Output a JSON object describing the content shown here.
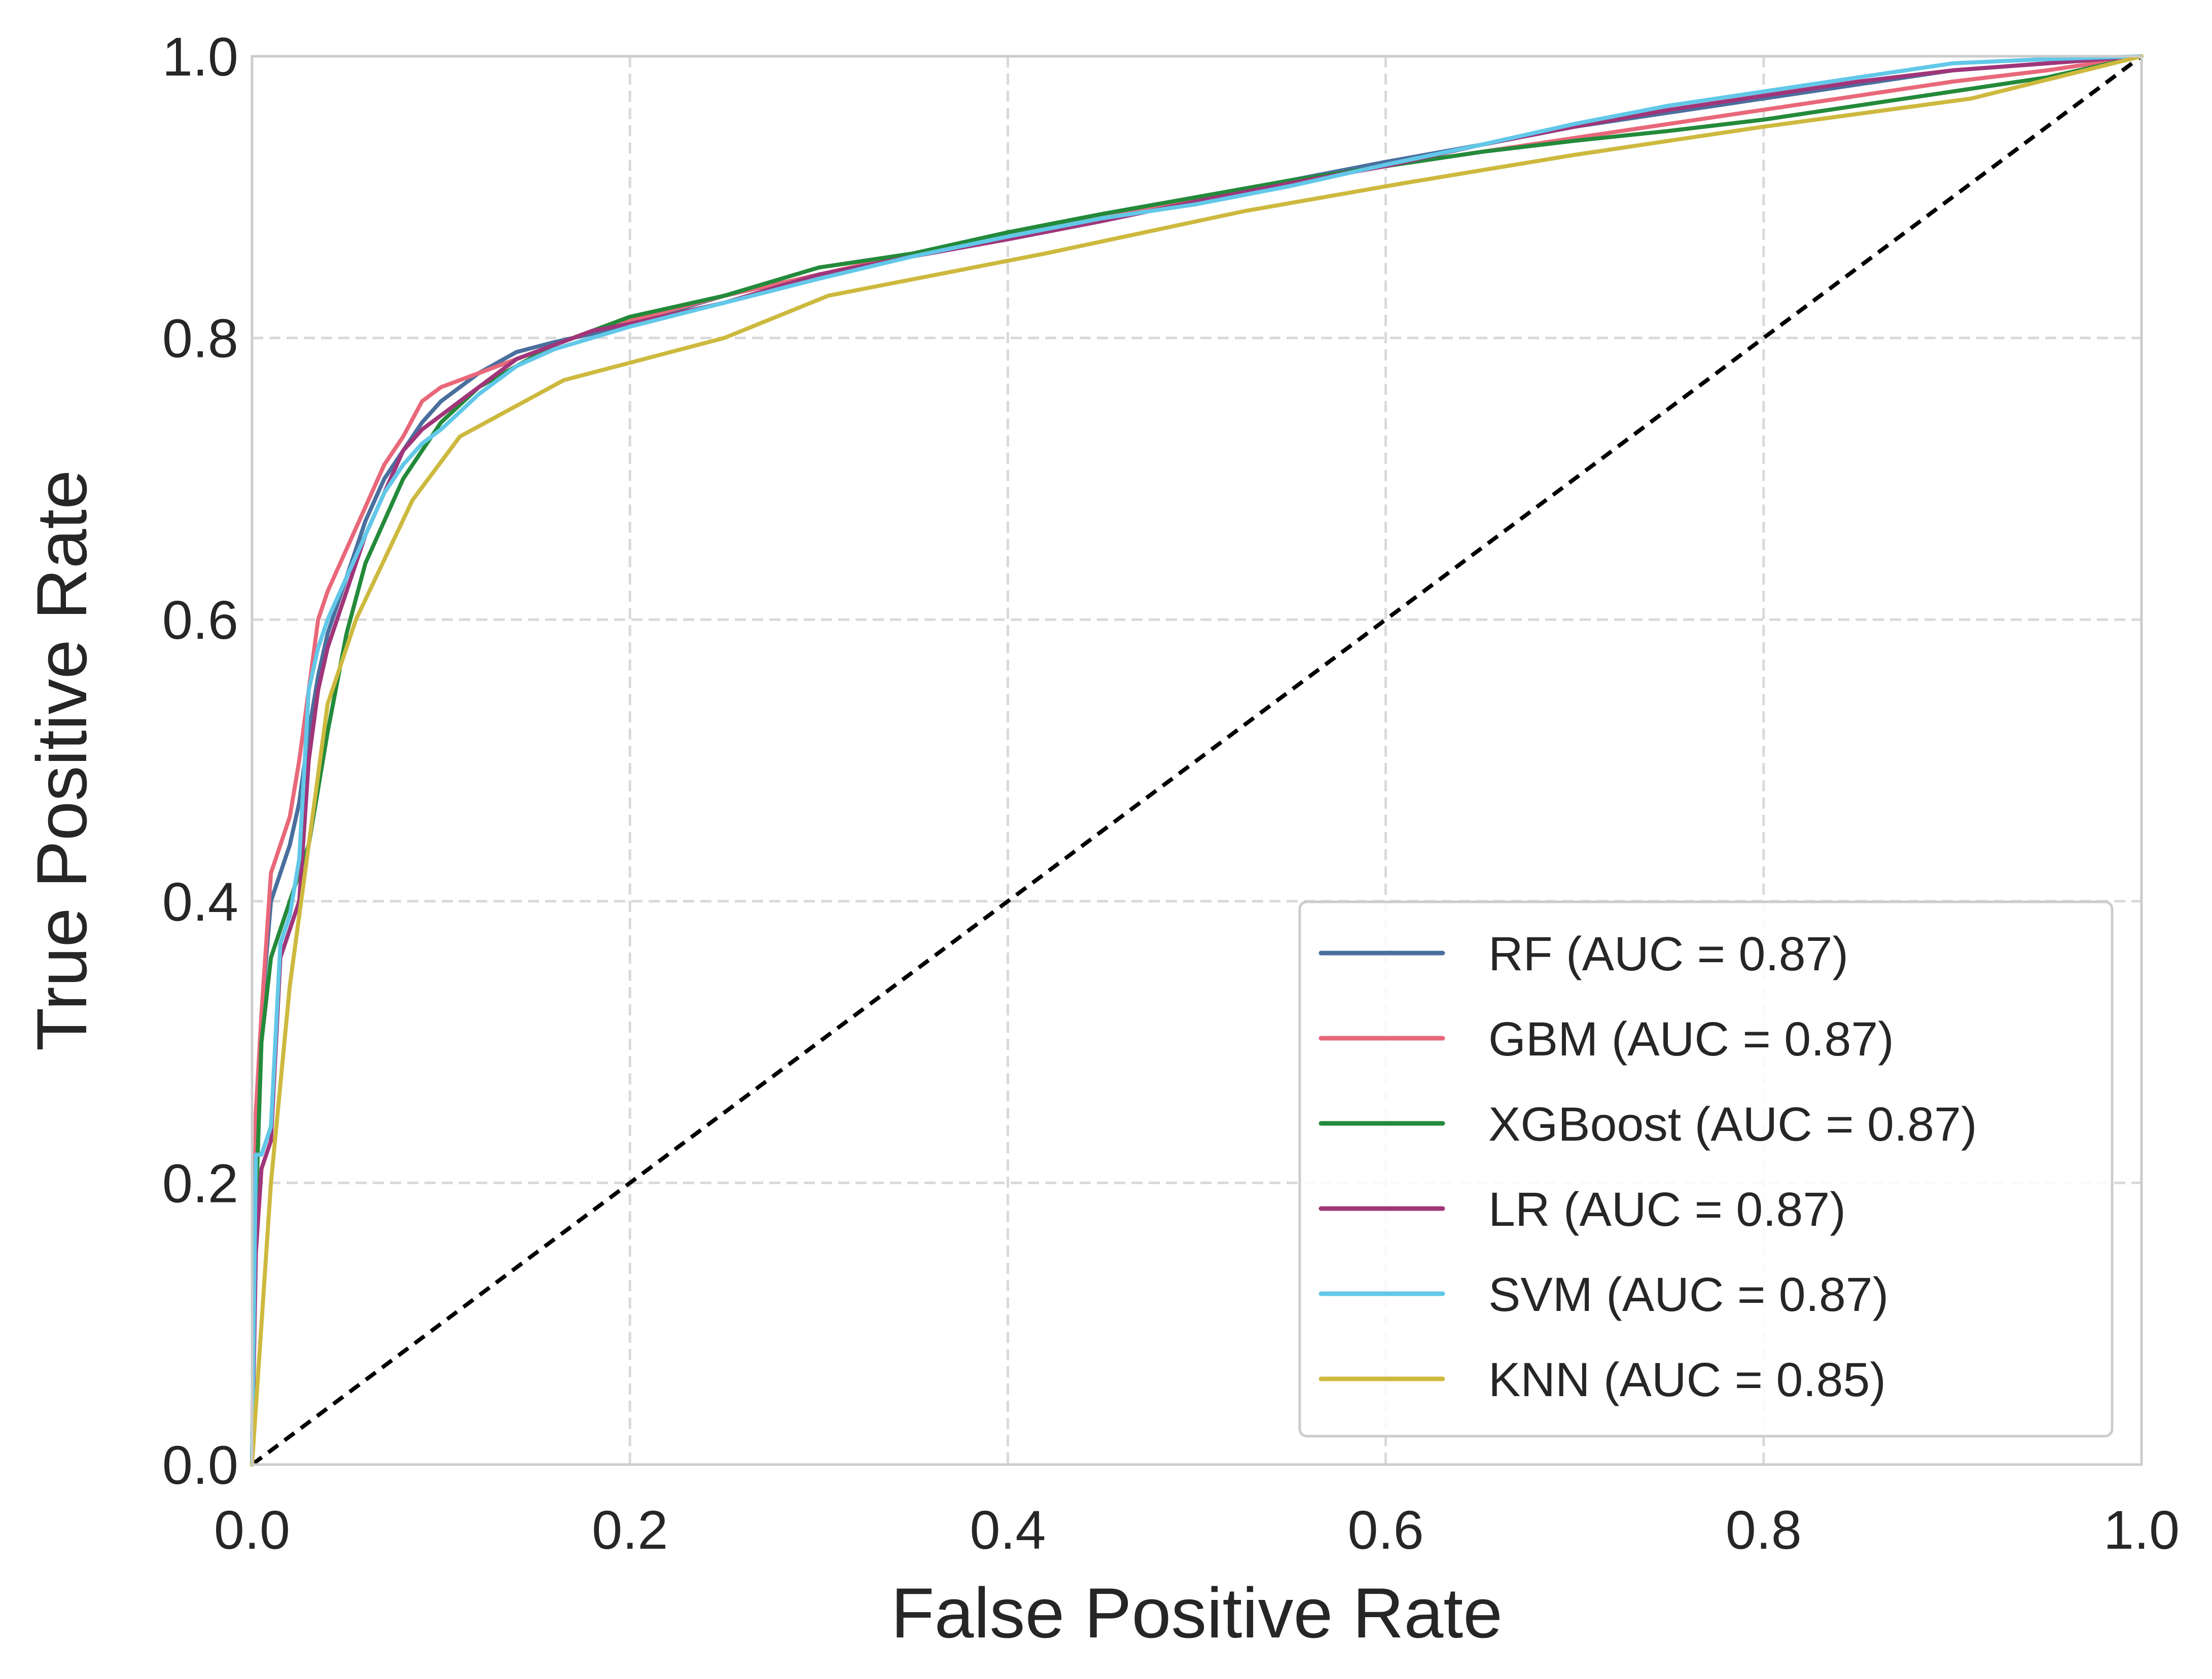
{
  "chart_data": {
    "type": "line",
    "title": "",
    "xlabel": "False Positive Rate",
    "ylabel": "True Positive Rate",
    "xlim": [
      0.0,
      1.0
    ],
    "ylim": [
      0.0,
      1.0
    ],
    "xticks": [
      "0.0",
      "0.2",
      "0.4",
      "0.6",
      "0.8",
      "1.0"
    ],
    "yticks": [
      "0.0",
      "0.2",
      "0.4",
      "0.6",
      "0.8",
      "1.0"
    ],
    "grid": true,
    "legend_position": "lower-right",
    "reference_line": {
      "x": [
        0,
        1
      ],
      "y": [
        0,
        1
      ],
      "color": "#000000",
      "style": "dashed"
    },
    "series": [
      {
        "name": "RF (AUC = 0.87)",
        "color": "#4a6f9e",
        "x": [
          0.0,
          0.002,
          0.005,
          0.01,
          0.015,
          0.02,
          0.025,
          0.03,
          0.035,
          0.04,
          0.05,
          0.06,
          0.07,
          0.08,
          0.09,
          0.1,
          0.12,
          0.14,
          0.16,
          0.18,
          0.2,
          0.25,
          0.3,
          0.35,
          0.4,
          0.45,
          0.5,
          0.55,
          0.6,
          0.65,
          0.7,
          0.75,
          0.8,
          0.85,
          0.9,
          0.95,
          1.0
        ],
        "y": [
          0.0,
          0.22,
          0.32,
          0.4,
          0.42,
          0.44,
          0.47,
          0.52,
          0.56,
          0.59,
          0.63,
          0.67,
          0.7,
          0.72,
          0.74,
          0.755,
          0.775,
          0.79,
          0.797,
          0.803,
          0.81,
          0.83,
          0.845,
          0.86,
          0.875,
          0.888,
          0.9,
          0.912,
          0.925,
          0.937,
          0.95,
          0.96,
          0.97,
          0.98,
          0.99,
          0.995,
          1.0
        ]
      },
      {
        "name": "GBM (AUC = 0.87)",
        "color": "#e8687a",
        "x": [
          0.0,
          0.002,
          0.005,
          0.01,
          0.015,
          0.02,
          0.025,
          0.03,
          0.035,
          0.04,
          0.05,
          0.06,
          0.07,
          0.08,
          0.09,
          0.1,
          0.12,
          0.14,
          0.16,
          0.18,
          0.2,
          0.25,
          0.3,
          0.35,
          0.4,
          0.45,
          0.5,
          0.55,
          0.6,
          0.65,
          0.7,
          0.75,
          0.8,
          0.85,
          0.9,
          0.95,
          1.0
        ],
        "y": [
          0.0,
          0.25,
          0.32,
          0.42,
          0.44,
          0.46,
          0.5,
          0.55,
          0.6,
          0.62,
          0.65,
          0.68,
          0.71,
          0.73,
          0.755,
          0.765,
          0.775,
          0.785,
          0.795,
          0.805,
          0.812,
          0.83,
          0.845,
          0.86,
          0.872,
          0.885,
          0.898,
          0.91,
          0.922,
          0.932,
          0.942,
          0.952,
          0.962,
          0.972,
          0.982,
          0.99,
          1.0
        ]
      },
      {
        "name": "XGBoost (AUC = 0.87)",
        "color": "#238a3a",
        "x": [
          0.0,
          0.002,
          0.005,
          0.01,
          0.015,
          0.02,
          0.025,
          0.03,
          0.035,
          0.04,
          0.05,
          0.06,
          0.07,
          0.08,
          0.09,
          0.1,
          0.12,
          0.14,
          0.16,
          0.18,
          0.2,
          0.25,
          0.3,
          0.35,
          0.4,
          0.45,
          0.5,
          0.55,
          0.6,
          0.65,
          0.7,
          0.75,
          0.8,
          0.85,
          0.9,
          0.95,
          1.0
        ],
        "y": [
          0.0,
          0.18,
          0.3,
          0.36,
          0.38,
          0.4,
          0.42,
          0.44,
          0.48,
          0.52,
          0.59,
          0.64,
          0.67,
          0.7,
          0.72,
          0.74,
          0.765,
          0.78,
          0.795,
          0.805,
          0.815,
          0.83,
          0.85,
          0.86,
          0.875,
          0.888,
          0.9,
          0.912,
          0.922,
          0.932,
          0.94,
          0.947,
          0.955,
          0.965,
          0.975,
          0.985,
          1.0
        ]
      },
      {
        "name": "LR (AUC = 0.87)",
        "color": "#a0357a",
        "x": [
          0.0,
          0.002,
          0.005,
          0.01,
          0.015,
          0.02,
          0.025,
          0.03,
          0.035,
          0.04,
          0.05,
          0.06,
          0.07,
          0.08,
          0.09,
          0.1,
          0.12,
          0.14,
          0.16,
          0.18,
          0.2,
          0.25,
          0.3,
          0.35,
          0.4,
          0.45,
          0.5,
          0.55,
          0.6,
          0.65,
          0.7,
          0.75,
          0.8,
          0.85,
          0.9,
          0.95,
          1.0
        ],
        "y": [
          0.0,
          0.15,
          0.21,
          0.23,
          0.36,
          0.38,
          0.4,
          0.5,
          0.55,
          0.58,
          0.62,
          0.66,
          0.69,
          0.72,
          0.735,
          0.745,
          0.765,
          0.785,
          0.795,
          0.805,
          0.81,
          0.825,
          0.845,
          0.858,
          0.87,
          0.883,
          0.897,
          0.91,
          0.922,
          0.937,
          0.95,
          0.962,
          0.972,
          0.982,
          0.99,
          0.995,
          1.0
        ]
      },
      {
        "name": "SVM (AUC = 0.87)",
        "color": "#62c8e8",
        "x": [
          0.0,
          0.002,
          0.005,
          0.01,
          0.015,
          0.02,
          0.025,
          0.03,
          0.035,
          0.04,
          0.05,
          0.06,
          0.07,
          0.08,
          0.09,
          0.1,
          0.12,
          0.14,
          0.16,
          0.18,
          0.2,
          0.25,
          0.3,
          0.35,
          0.4,
          0.45,
          0.5,
          0.55,
          0.6,
          0.65,
          0.7,
          0.75,
          0.8,
          0.85,
          0.9,
          0.95,
          1.0
        ],
        "y": [
          0.0,
          0.22,
          0.22,
          0.24,
          0.37,
          0.39,
          0.43,
          0.55,
          0.58,
          0.6,
          0.63,
          0.66,
          0.69,
          0.71,
          0.725,
          0.735,
          0.76,
          0.78,
          0.792,
          0.8,
          0.808,
          0.825,
          0.842,
          0.858,
          0.872,
          0.885,
          0.895,
          0.908,
          0.923,
          0.937,
          0.952,
          0.965,
          0.975,
          0.985,
          0.995,
          0.998,
          1.0
        ]
      },
      {
        "name": "KNN (AUC = 0.85)",
        "color": "#cdb93e",
        "x": [
          0.0,
          0.01,
          0.02,
          0.03,
          0.04,
          0.055,
          0.085,
          0.11,
          0.165,
          0.25,
          0.305,
          0.42,
          0.525,
          0.61,
          0.7,
          0.8,
          0.91,
          1.0
        ],
        "y": [
          0.0,
          0.2,
          0.34,
          0.44,
          0.54,
          0.6,
          0.685,
          0.73,
          0.77,
          0.8,
          0.83,
          0.86,
          0.89,
          0.91,
          0.93,
          0.95,
          0.97,
          1.0
        ]
      }
    ]
  }
}
